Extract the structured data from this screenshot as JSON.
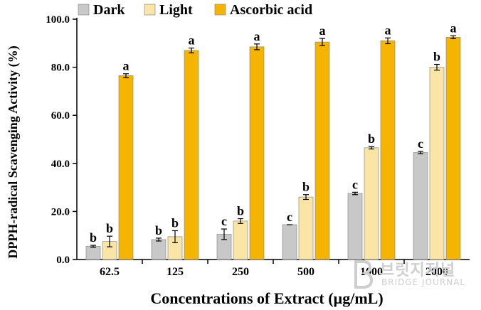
{
  "chart_data": {
    "type": "bar",
    "xlabel": "Concentrations of Extract (µg/mL)",
    "ylabel": "DPPH-radical Scavenging Activity (%)",
    "ylim": [
      0,
      100
    ],
    "yticks": [
      "0.0",
      "20.0",
      "40.0",
      "60.0",
      "80.0",
      "100.0"
    ],
    "legend_position": "top",
    "grid": false,
    "categories": [
      "62.5",
      "125",
      "250",
      "500",
      "1000",
      "2000"
    ],
    "series": [
      {
        "name": "Dark",
        "color": "#c8c8c8",
        "values": [
          5.5,
          8.3,
          10.5,
          14.5,
          27.5,
          44.5
        ],
        "errors": [
          0.4,
          0.6,
          2.2,
          0.0,
          0.5,
          0.5
        ],
        "labels": [
          "b",
          "b",
          "c",
          "c",
          "c",
          "c"
        ]
      },
      {
        "name": "Light",
        "color": "#fbe5a6",
        "values": [
          7.5,
          9.5,
          16.0,
          26.0,
          46.5,
          80.0
        ],
        "errors": [
          2.2,
          2.5,
          1.0,
          1.0,
          0.5,
          1.2
        ],
        "labels": [
          "b",
          "b",
          "b",
          "b",
          "b",
          "b"
        ]
      },
      {
        "name": "Ascorbic acid",
        "color": "#f5b400",
        "values": [
          76.5,
          87.0,
          88.5,
          90.5,
          91.0,
          92.5
        ],
        "errors": [
          0.8,
          1.0,
          1.2,
          1.5,
          1.2,
          0.6
        ],
        "labels": [
          "a",
          "a",
          "a",
          "a",
          "a",
          "a"
        ]
      }
    ]
  },
  "watermark": {
    "main": "브릿지저널",
    "sub": "BRIDGE JOURNAL"
  }
}
